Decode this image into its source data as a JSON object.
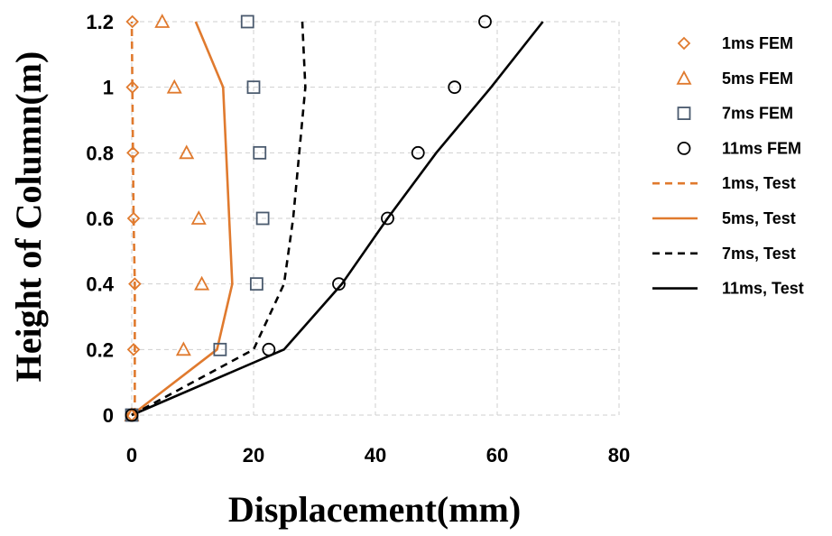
{
  "chart_data": {
    "type": "scatter",
    "xlabel": "Displacement(mm)",
    "ylabel": "Height of Column(m)",
    "xlim": [
      0,
      80
    ],
    "ylim": [
      0,
      1.2
    ],
    "xticks": [
      "0",
      "20",
      "40",
      "60",
      "80"
    ],
    "yticks": [
      "0",
      "0.2",
      "0.4",
      "0.6",
      "0.8",
      "1",
      "1.2"
    ],
    "grid": true,
    "legend_position": "right",
    "series": [
      {
        "name": "1ms FEM",
        "kind": "marker",
        "marker": "diamond",
        "color": "#E07A2E",
        "x": [
          0,
          0.3,
          0.5,
          0.3,
          0.2,
          0.1,
          0.1
        ],
        "y": [
          0,
          0.2,
          0.4,
          0.6,
          0.8,
          1.0,
          1.2
        ]
      },
      {
        "name": "5ms FEM",
        "kind": "marker",
        "marker": "triangle",
        "color": "#E07A2E",
        "x": [
          0,
          8.5,
          11.5,
          11,
          9,
          7,
          5
        ],
        "y": [
          0,
          0.2,
          0.4,
          0.6,
          0.8,
          1.0,
          1.2
        ]
      },
      {
        "name": "7ms FEM",
        "kind": "marker",
        "marker": "square",
        "color": "#4A5A6E",
        "x": [
          0,
          14.5,
          20.5,
          21.5,
          21,
          20,
          19
        ],
        "y": [
          0,
          0.2,
          0.4,
          0.6,
          0.8,
          1.0,
          1.2
        ]
      },
      {
        "name": "11ms FEM",
        "kind": "marker",
        "marker": "circle",
        "color": "#000000",
        "x": [
          0,
          22.5,
          34,
          42,
          47,
          53,
          58
        ],
        "y": [
          0,
          0.2,
          0.4,
          0.6,
          0.8,
          1.0,
          1.2
        ]
      },
      {
        "name": "1ms, Test",
        "kind": "line",
        "dash": "8,6",
        "color": "#E07A2E",
        "x": [
          0.5,
          0.5,
          0.5,
          0.3,
          0.2,
          0.1,
          0
        ],
        "y": [
          0,
          0.2,
          0.4,
          0.6,
          0.8,
          1.0,
          1.2
        ]
      },
      {
        "name": "5ms, Test",
        "kind": "line",
        "dash": "",
        "color": "#E07A2E",
        "x": [
          0,
          14,
          16.5,
          16,
          15.5,
          15,
          10.5
        ],
        "y": [
          0,
          0.2,
          0.4,
          0.6,
          0.8,
          1.0,
          1.2
        ]
      },
      {
        "name": "7ms, Test",
        "kind": "line",
        "dash": "8,6",
        "color": "#000000",
        "x": [
          0,
          20,
          25,
          26.5,
          27.5,
          28.5,
          28
        ],
        "y": [
          0,
          0.2,
          0.4,
          0.6,
          0.8,
          1.0,
          1.2
        ]
      },
      {
        "name": "11ms, Test",
        "kind": "line",
        "dash": "",
        "color": "#000000",
        "x": [
          0,
          25,
          34.5,
          42,
          50,
          59,
          67.5
        ],
        "y": [
          0,
          0.2,
          0.4,
          0.6,
          0.8,
          1.0,
          1.2
        ]
      }
    ]
  }
}
